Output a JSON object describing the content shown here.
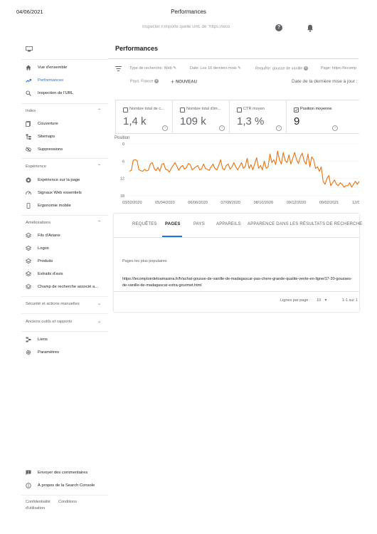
{
  "print_header": {
    "date": "04/06/2021",
    "title": "Performances"
  },
  "topbar": {
    "search_placeholder": "Inspecter n'importe quelle URL de \"https://leco"
  },
  "sidebar": {
    "items": [
      {
        "label": "Vue d'ensemble",
        "icon": "home-icon"
      },
      {
        "label": "Performances",
        "icon": "trending-up-icon",
        "active": true
      },
      {
        "label": "Inspection de l'URL",
        "icon": "search-icon"
      }
    ],
    "sections": [
      {
        "title": "Index",
        "items": [
          {
            "label": "Couverture",
            "icon": "coverage-icon"
          },
          {
            "label": "Sitemaps",
            "icon": "sitemap-icon"
          },
          {
            "label": "Suppressions",
            "icon": "visibility-off-icon"
          }
        ]
      },
      {
        "title": "Expérience",
        "items": [
          {
            "label": "Expérience sur la page",
            "icon": "page-experience-icon"
          },
          {
            "label": "Signaux Web essentiels",
            "icon": "speed-icon"
          },
          {
            "label": "Ergonomie mobile",
            "icon": "mobile-icon"
          }
        ]
      },
      {
        "title": "Améliorations",
        "items": [
          {
            "label": "Fils d'Ariane",
            "icon": "layers-icon"
          },
          {
            "label": "Logos",
            "icon": "layers-icon"
          },
          {
            "label": "Produits",
            "icon": "layers-icon"
          },
          {
            "label": "Extraits d'avis",
            "icon": "layers-icon"
          },
          {
            "label": "Champ de recherche associé a...",
            "icon": "layers-icon"
          }
        ]
      },
      {
        "title": "Sécurité et actions manuelles",
        "items": []
      },
      {
        "title": "Anciens outils et rapports",
        "items": []
      }
    ],
    "bottom_items": [
      {
        "label": "Liens",
        "icon": "links-icon"
      },
      {
        "label": "Paramètres",
        "icon": "gear-icon"
      }
    ],
    "footer_items": [
      {
        "label": "Envoyer des commentaires",
        "icon": "feedback-icon"
      },
      {
        "label": "À propos de la Search Console",
        "icon": "info-icon"
      }
    ],
    "legal": {
      "privacy": "Confidentialité",
      "terms": "Conditions",
      "usage": "d'utilisation"
    }
  },
  "main": {
    "title": "Performances",
    "filters": {
      "search_type": "Type de recherche: Web",
      "date": "Date: Les 16 derniers mois",
      "query": "Requête: gousse de vanille",
      "page": "Page: https://lecomp",
      "country": "Pays: France",
      "new_label": "NOUVEAU",
      "last_update": "Date de la dernière mise à jour :"
    },
    "metrics": [
      {
        "label": "Nombre total de c...",
        "value": "1,4 k",
        "checked": false
      },
      {
        "label": "Nombre total d'im...",
        "value": "109 k",
        "checked": false
      },
      {
        "label": "CTR moyen",
        "value": "1,3 %",
        "checked": false
      },
      {
        "label": "Position moyenne",
        "value": "9",
        "checked": true
      }
    ],
    "tabs": [
      {
        "label": "REQUÊTES"
      },
      {
        "label": "PAGES",
        "active": true
      },
      {
        "label": "PAYS"
      },
      {
        "label": "APPAREILS"
      },
      {
        "label": "APPARENCE DANS LES RÉSULTATS DE RECHERCHE"
      }
    ],
    "table": {
      "column_header": "Pages les plus populaires",
      "rows": [
        "https://lecomptoirdetoamasina.fr/fr/achat-gousse-de-vanille-de-madagascar-pas-chere-grande-qualite-vente-en-ligne/17-20-gousses-de-vanille-de-madagascar-extra-gourmet.html"
      ],
      "rows_per_page_label": "Lignes par page :",
      "rows_per_page": "10",
      "range": "1-1 sur 1"
    }
  },
  "chart_data": {
    "type": "line",
    "ylabel": "Position",
    "y_ticks": [
      "0",
      "6",
      "12",
      "18"
    ],
    "ylim": [
      0,
      18
    ],
    "y_inverted": true,
    "x_ticks": [
      "03/02/2020",
      "05/04/2020",
      "06/06/2020",
      "07/08/2020",
      "08/10/2020",
      "09/12/2020",
      "09/02/2021",
      "12/04/20"
    ],
    "color": "#e8710a",
    "series": [
      {
        "values": [
          9.5,
          9.2,
          5.7,
          5.5,
          5.8,
          9.0,
          9.3,
          9.5,
          8.8,
          9.4,
          9.1,
          7.0,
          6.5,
          8.5,
          9.3,
          8.2,
          9.5,
          7.2,
          6.8,
          8.8,
          9.0,
          9.8,
          8.5,
          7.5,
          6.5,
          7.8,
          9.2,
          8.0,
          7.5,
          8.8,
          8.2,
          6.8,
          7.2,
          9.0,
          8.5,
          8.0,
          7.5,
          9.0,
          8.7,
          7.0,
          8.5,
          8.8,
          9.2,
          8.0,
          7.0,
          8.5,
          9.0,
          7.5,
          5.5,
          8.5,
          9.0,
          7.5,
          7.0,
          8.8,
          8.0,
          6.5,
          8.0,
          9.0,
          7.8,
          6.5,
          8.5,
          7.8,
          5.0,
          8.5,
          7.2,
          9.0,
          6.8,
          4.8,
          8.5,
          7.5,
          9.0,
          6.0,
          8.5,
          8.0,
          3.5,
          6.5,
          5.5,
          7.2,
          2.5,
          5.5,
          7.0,
          3.0,
          5.8,
          6.5,
          3.8,
          7.0,
          5.0,
          3.0,
          5.5,
          6.8,
          4.5,
          3.2,
          6.0,
          7.0,
          3.5,
          8.0,
          4.5,
          5.5,
          8.5,
          8.0,
          9.5,
          8.0,
          13.0,
          14.0,
          12.0,
          11.0,
          14.5,
          13.5,
          12.5,
          14.0,
          14.5,
          13.5,
          14.0,
          15.0,
          14.5,
          14.5,
          13.5,
          15.0,
          14.0,
          13.0,
          14.0,
          13.0
        ]
      }
    ]
  }
}
